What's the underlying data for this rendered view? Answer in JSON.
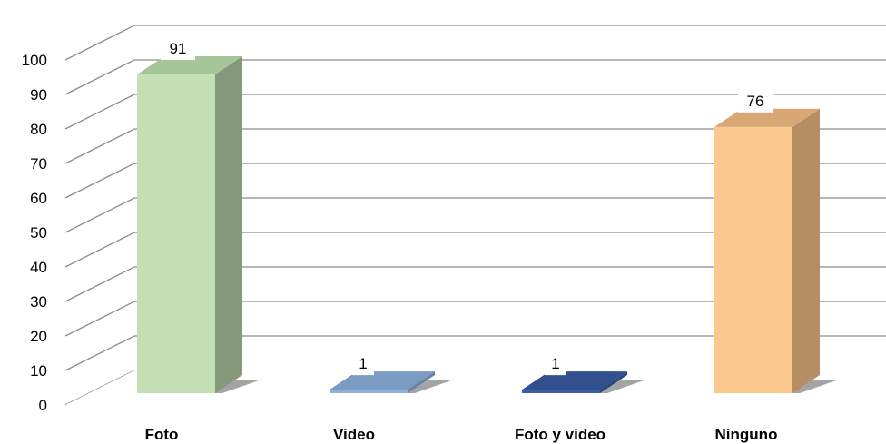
{
  "chart_data": {
    "type": "bar",
    "categories": [
      "Foto",
      "Video",
      "Foto y video",
      "Ninguno"
    ],
    "values": [
      91,
      1,
      1,
      76
    ],
    "ylim": [
      0,
      100
    ],
    "yticks": [
      "0",
      "10",
      "20",
      "30",
      "40",
      "50",
      "60",
      "70",
      "80",
      "90",
      "100"
    ],
    "data_labels": [
      "91",
      "1",
      "1",
      "76"
    ],
    "grid": true,
    "three_d": true,
    "colors": [
      "#c5e0b4",
      "#8fb0d9",
      "#3a5fa8",
      "#fbc98f"
    ],
    "side_colors": [
      "#84987a",
      "#6a84a6",
      "#2b477e",
      "#b68e63"
    ],
    "top_colors": [
      "#a6c598",
      "#7a9bc2",
      "#324f8e",
      "#d9a774"
    ]
  }
}
